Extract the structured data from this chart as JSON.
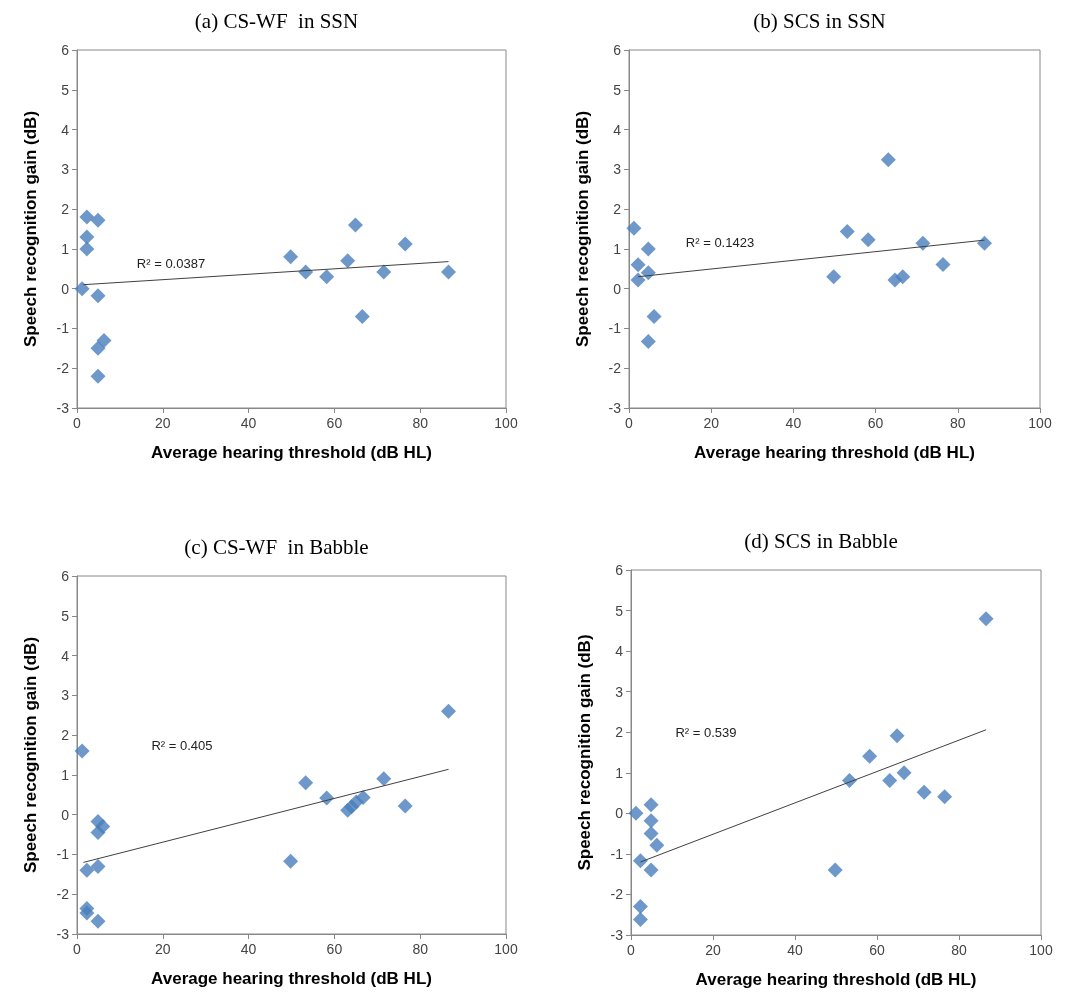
{
  "chart_data": [
    {
      "type": "scatter",
      "title": "(a) CS-WF  in SSN",
      "xlabel": "Average hearing threshold (dB HL)",
      "ylabel": "Speech recognition gain (dB)",
      "xlim": [
        0,
        100
      ],
      "xticks": [
        0,
        20,
        40,
        60,
        80,
        100
      ],
      "ylim": [
        -3,
        6
      ],
      "yticks": [
        -3,
        -2,
        -1,
        0,
        1,
        2,
        3,
        4,
        5,
        6
      ],
      "grid": false,
      "marker": "diamond",
      "annotations": [
        "R² = 0.0387"
      ],
      "series": [
        {
          "type": "scatter",
          "color": "#4a7ebb",
          "x": [
            1.2,
            2.3,
            4.9,
            2.3,
            2.3,
            4.9,
            4.9,
            6.3,
            4.9,
            49.8,
            53.3,
            58.2,
            63.1,
            64.9,
            66.5,
            71.5,
            76.5,
            86.6
          ],
          "values": [
            0,
            1.8,
            1.72,
            1.3,
            1.0,
            -0.18,
            -1.5,
            -1.3,
            -2.2,
            0.8,
            0.42,
            0.3,
            0.7,
            1.6,
            -0.7,
            0.42,
            1.12,
            0.42
          ]
        },
        {
          "type": "line",
          "color": "#404040",
          "marker": "none",
          "x": [
            1.5,
            86.6
          ],
          "values": [
            0.1,
            0.68
          ]
        }
      ]
    },
    {
      "type": "scatter",
      "title": "(b) SCS in SSN",
      "xlabel": "Average hearing threshold (dB HL)",
      "ylabel": "Speech recognition gain (dB)",
      "xlim": [
        0,
        100
      ],
      "xticks": [
        0,
        20,
        40,
        60,
        80,
        100
      ],
      "ylim": [
        -3,
        6
      ],
      "yticks": [
        -3,
        -2,
        -1,
        0,
        1,
        2,
        3,
        4,
        5,
        6
      ],
      "grid": false,
      "marker": "diamond",
      "annotations": [
        "R² = 0.1423"
      ],
      "series": [
        {
          "type": "scatter",
          "color": "#4a7ebb",
          "x": [
            1.2,
            2.2,
            2.2,
            4.7,
            4.7,
            4.7,
            6.1,
            49.8,
            53.1,
            58.2,
            63.1,
            64.7,
            66.6,
            71.5,
            76.4,
            86.5
          ],
          "values": [
            1.52,
            0.6,
            0.22,
            1.0,
            0.4,
            -1.33,
            -0.7,
            0.3,
            1.44,
            1.23,
            3.24,
            0.22,
            0.3,
            1.14,
            0.61,
            1.14
          ]
        },
        {
          "type": "line",
          "color": "#404040",
          "marker": "none",
          "x": [
            2.2,
            86.5
          ],
          "values": [
            0.3,
            1.22
          ]
        }
      ]
    },
    {
      "type": "scatter",
      "title": "(c) CS-WF  in Babble",
      "xlabel": "Average hearing threshold (dB HL)",
      "ylabel": "Speech recognition gain (dB)",
      "xlim": [
        0,
        100
      ],
      "xticks": [
        0,
        20,
        40,
        60,
        80,
        100
      ],
      "ylim": [
        -3,
        6
      ],
      "yticks": [
        -3,
        -2,
        -1,
        0,
        1,
        2,
        3,
        4,
        5,
        6
      ],
      "grid": false,
      "marker": "diamond",
      "annotations": [
        "R² = 0.405"
      ],
      "series": [
        {
          "type": "scatter",
          "color": "#4a7ebb",
          "x": [
            1.2,
            2.3,
            4.9,
            2.3,
            2.3,
            4.9,
            4.9,
            4.9,
            6.0,
            49.8,
            53.3,
            58.2,
            63.1,
            64.0,
            65.1,
            66.7,
            71.5,
            76.5,
            86.6
          ],
          "values": [
            1.6,
            -1.4,
            -1.3,
            -2.36,
            -2.47,
            -2.68,
            -0.17,
            -0.45,
            -0.3,
            -1.17,
            0.8,
            0.42,
            0.11,
            0.2,
            0.32,
            0.43,
            0.9,
            0.22,
            2.6
          ]
        },
        {
          "type": "line",
          "color": "#404040",
          "marker": "none",
          "x": [
            1.5,
            86.6
          ],
          "values": [
            -1.2,
            1.14
          ]
        }
      ]
    },
    {
      "type": "scatter",
      "title": "(d) SCS in Babble",
      "xlabel": "Average hearing threshold (dB HL)",
      "ylabel": "Speech recognition gain (dB)",
      "xlim": [
        0,
        100
      ],
      "xticks": [
        0,
        20,
        40,
        60,
        80,
        100
      ],
      "ylim": [
        -3,
        6
      ],
      "yticks": [
        -3,
        -2,
        -1,
        0,
        1,
        2,
        3,
        4,
        5,
        6
      ],
      "grid": false,
      "marker": "diamond",
      "annotations": [
        "R² = 0.539"
      ],
      "series": [
        {
          "type": "scatter",
          "color": "#4a7ebb",
          "x": [
            1.2,
            2.3,
            2.3,
            2.3,
            4.9,
            4.9,
            4.9,
            6.3,
            4.9,
            49.8,
            53.3,
            58.2,
            63.1,
            64.9,
            66.6,
            71.5,
            76.5,
            86.6
          ],
          "values": [
            0,
            -1.17,
            -2.3,
            -2.62,
            0.21,
            -0.18,
            -0.5,
            -0.79,
            -1.4,
            -1.4,
            0.81,
            1.41,
            0.81,
            1.91,
            1.0,
            0.52,
            0.41,
            4.8
          ]
        },
        {
          "type": "line",
          "color": "#404040",
          "marker": "none",
          "x": [
            2.3,
            86.6
          ],
          "values": [
            -1.2,
            2.06
          ]
        }
      ]
    }
  ]
}
